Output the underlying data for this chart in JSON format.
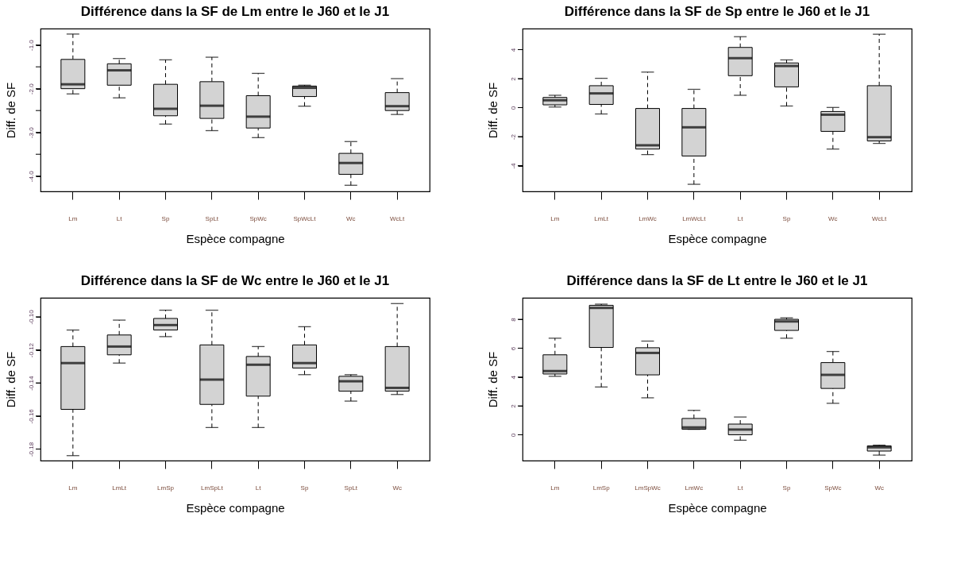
{
  "chart_data": [
    {
      "type": "box",
      "title": "Différence dans la SF de Lm entre le J60 et le J1",
      "xlabel": "Espèce compagne",
      "ylabel": "Diff. de SF",
      "categories": [
        "Lm",
        "Lt",
        "Sp",
        "SpLt",
        "SpWc",
        "SpWcLt",
        "Wc",
        "WcLt"
      ],
      "boxes": [
        {
          "low": -2.12,
          "q1": -2.0,
          "median": -1.9,
          "q3": -1.33,
          "high": -0.75
        },
        {
          "low": -2.21,
          "q1": -1.92,
          "median": -1.58,
          "q3": -1.43,
          "high": -1.31
        },
        {
          "low": -2.81,
          "q1": -2.62,
          "median": -2.46,
          "q3": -1.9,
          "high": -1.34
        },
        {
          "low": -2.96,
          "q1": -2.68,
          "median": -2.39,
          "q3": -1.84,
          "high": -1.28
        },
        {
          "low": -3.12,
          "q1": -2.9,
          "median": -2.64,
          "q3": -2.16,
          "high": -1.65
        },
        {
          "low": -2.4,
          "q1": -2.18,
          "median": -1.98,
          "q3": -1.94,
          "high": -1.92
        },
        {
          "low": -4.21,
          "q1": -3.96,
          "median": -3.7,
          "q3": -3.48,
          "high": -3.21
        },
        {
          "low": -2.59,
          "q1": -2.5,
          "median": -2.4,
          "q3": -2.09,
          "high": -1.77
        }
      ],
      "ylim": [
        -4.35,
        -0.625
      ],
      "yticks": [
        {
          "value": -1.0,
          "label": "-1.0"
        },
        {
          "value": -1.5,
          "label": null
        },
        {
          "value": -2.0,
          "label": "-2.0"
        },
        {
          "value": -2.5,
          "label": null
        },
        {
          "value": -3.0,
          "label": "-3.0"
        },
        {
          "value": -3.5,
          "label": null
        },
        {
          "value": -4.0,
          "label": "-4.0"
        }
      ]
    },
    {
      "type": "box",
      "title": "Différence dans la SF de Sp entre le J60 et le J1",
      "xlabel": "Espèce compagne",
      "ylabel": "Diff. de SF",
      "categories": [
        "Lm",
        "LmLt",
        "LmWc",
        "LmWcLt",
        "Lt",
        "Sp",
        "Wc",
        "WcLt"
      ],
      "boxes": [
        {
          "low": 0.04,
          "q1": 0.19,
          "median": 0.5,
          "q3": 0.7,
          "high": 0.85
        },
        {
          "low": -0.44,
          "q1": 0.22,
          "median": 0.98,
          "q3": 1.51,
          "high": 2.02
        },
        {
          "low": -3.24,
          "q1": -2.86,
          "median": -2.6,
          "q3": -0.06,
          "high": 2.45
        },
        {
          "low": -5.29,
          "q1": -3.34,
          "median": -1.36,
          "q3": -0.06,
          "high": 1.26
        },
        {
          "low": 0.85,
          "q1": 2.2,
          "median": 3.41,
          "q3": 4.15,
          "high": 4.89
        },
        {
          "low": 0.11,
          "q1": 1.43,
          "median": 2.87,
          "q3": 3.08,
          "high": 3.29
        },
        {
          "low": -2.86,
          "q1": -1.64,
          "median": -0.49,
          "q3": -0.27,
          "high": 0.01
        },
        {
          "low": -2.47,
          "q1": -2.3,
          "median": -2.04,
          "q3": 1.51,
          "high": 5.06
        }
      ],
      "ylim": [
        -5.78,
        5.45
      ],
      "yticks": [
        -4,
        -2,
        0,
        2,
        4
      ]
    },
    {
      "type": "box",
      "title": "Différence dans la SF de Wc entre le J60 et le J1",
      "xlabel": "Espèce compagne",
      "ylabel": "Diff. de SF",
      "categories": [
        "Lm",
        "LmLt",
        "LmSp",
        "LmSpLt",
        "Lt",
        "Sp",
        "SpLt",
        "Wc"
      ],
      "boxes": [
        {
          "low": -0.184,
          "q1": -0.156,
          "median": -0.128,
          "q3": -0.118,
          "high": -0.108
        },
        {
          "low": -0.128,
          "q1": -0.123,
          "median": -0.118,
          "q3": -0.111,
          "high": -0.102
        },
        {
          "low": -0.112,
          "q1": -0.108,
          "median": -0.105,
          "q3": -0.101,
          "high": -0.096
        },
        {
          "low": -0.167,
          "q1": -0.153,
          "median": -0.138,
          "q3": -0.117,
          "high": -0.096
        },
        {
          "low": -0.167,
          "q1": -0.148,
          "median": -0.129,
          "q3": -0.124,
          "high": -0.118
        },
        {
          "low": -0.135,
          "q1": -0.131,
          "median": -0.128,
          "q3": -0.117,
          "high": -0.106
        },
        {
          "low": -0.151,
          "q1": -0.145,
          "median": -0.139,
          "q3": -0.136,
          "high": -0.135
        },
        {
          "low": -0.147,
          "q1": -0.145,
          "median": -0.143,
          "q3": -0.118,
          "high": -0.092
        }
      ],
      "ylim": [
        -0.187,
        -0.0885
      ],
      "yticks": [
        {
          "value": -0.1,
          "label": "-0.10"
        },
        {
          "value": -0.12,
          "label": "-0.12"
        },
        {
          "value": -0.14,
          "label": "-0.14"
        },
        {
          "value": -0.16,
          "label": "-0.16"
        },
        {
          "value": -0.18,
          "label": "-0.18"
        }
      ]
    },
    {
      "type": "box",
      "title": "Différence dans la SF de Lt entre le J60 et le J1",
      "xlabel": "Espèce compagne",
      "ylabel": "Diff. de SF",
      "categories": [
        "Lm",
        "LmSp",
        "LmSpWc",
        "LmWc",
        "Lt",
        "Sp",
        "SpWc",
        "Wc"
      ],
      "boxes": [
        {
          "low": 4.05,
          "q1": 4.21,
          "median": 4.41,
          "q3": 5.54,
          "high": 6.69
        },
        {
          "low": 3.31,
          "q1": 6.05,
          "median": 8.79,
          "q3": 8.97,
          "high": 9.05
        },
        {
          "low": 2.56,
          "q1": 4.15,
          "median": 5.67,
          "q3": 6.03,
          "high": 6.49
        },
        {
          "low": 0.38,
          "q1": 0.38,
          "median": 0.51,
          "q3": 1.13,
          "high": 1.69
        },
        {
          "low": -0.38,
          "q1": 0.0,
          "median": 0.36,
          "q3": 0.74,
          "high": 1.23
        },
        {
          "low": 6.69,
          "q1": 7.23,
          "median": 7.85,
          "q3": 8.0,
          "high": 8.1
        },
        {
          "low": 2.18,
          "q1": 3.21,
          "median": 4.15,
          "q3": 5.0,
          "high": 5.77
        },
        {
          "low": -1.41,
          "q1": -1.13,
          "median": -0.87,
          "q3": -0.77,
          "high": -0.72
        }
      ],
      "ylim": [
        -1.79,
        9.49
      ],
      "yticks": [
        0,
        2,
        4,
        6,
        8
      ]
    }
  ]
}
